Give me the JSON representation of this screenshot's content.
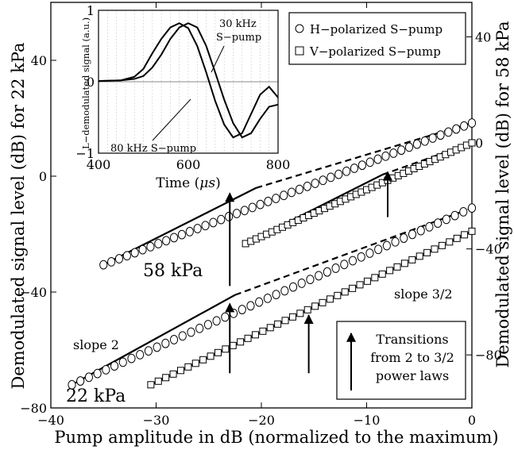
{
  "chart_data": {
    "type": "scatter",
    "xlabel": "Pump amplitude in dB (normalized to the maximum)",
    "ylabel_left": "Demodulated signal level (dB) for 22 kPa",
    "ylabel_right": "Demodulated signal level (dB) for 58 kPa",
    "xlim": [
      -40,
      0
    ],
    "ylim_left": [
      -80,
      60
    ],
    "ylim_right": [
      -100,
      53
    ],
    "xticks": [
      "−40",
      "−30",
      "−20",
      "−10",
      "0"
    ],
    "yticks_left": [
      "−80",
      "−40",
      "0",
      "40"
    ],
    "yticks_right": [
      "−80",
      "−40",
      "0",
      "40"
    ],
    "legend": {
      "position": "top-right",
      "entries": [
        {
          "marker": "circle",
          "label": "H−polarized S−pump"
        },
        {
          "marker": "square",
          "label": "V−polarized S−pump"
        }
      ]
    },
    "series": [
      {
        "name": "H−polarized S−pump",
        "group": "22 kPa",
        "axis": "left",
        "marker": "circle",
        "x": [
          -38,
          0
        ],
        "y": [
          -72,
          -11
        ]
      },
      {
        "name": "V−polarized S−pump",
        "group": "22 kPa",
        "axis": "left",
        "marker": "square",
        "x": [
          -30.5,
          0
        ],
        "y": [
          -72,
          -19
        ]
      },
      {
        "name": "H−polarized S−pump",
        "group": "58 kPa",
        "axis": "right",
        "marker": "circle",
        "x": [
          -35,
          0
        ],
        "y": [
          -46,
          7.5
        ]
      },
      {
        "name": "V−polarized S−pump",
        "group": "58 kPa",
        "axis": "right",
        "marker": "square",
        "x": [
          -21.5,
          0
        ],
        "y": [
          -38,
          0
        ]
      }
    ],
    "slope_lines": [
      {
        "axis": "left",
        "x": [
          -38,
          -22.5
        ],
        "y": [
          -72,
          -41
        ]
      },
      {
        "axis": "left",
        "x": [
          -30.5,
          -15.5
        ],
        "y": [
          -72,
          -46
        ]
      },
      {
        "axis": "right",
        "x": [
          -35,
          -20.5
        ],
        "y": [
          -46,
          -17
        ]
      },
      {
        "axis": "right",
        "x": [
          -21.5,
          -8.5
        ],
        "y": [
          -38,
          -12
        ]
      }
    ],
    "power_law_lines": [
      {
        "axis": "left",
        "x": [
          -22.5,
          0
        ],
        "y": [
          -41,
          -11
        ]
      },
      {
        "axis": "left",
        "x": [
          -15.5,
          0
        ],
        "y": [
          -46,
          -19
        ]
      },
      {
        "axis": "right",
        "x": [
          -20.5,
          0
        ],
        "y": [
          -17,
          7.5
        ]
      },
      {
        "axis": "right",
        "x": [
          -8.5,
          0
        ],
        "y": [
          -12,
          0
        ]
      }
    ],
    "annotations": {
      "group_58": "58 kPa",
      "group_22": "22 kPa",
      "slope2": "slope 2",
      "slope32": "slope 3/2",
      "transitions": [
        "Transitions",
        "from 2 to 3/2",
        "power laws"
      ]
    },
    "transition_arrows": [
      {
        "axis": "left",
        "x": -23,
        "y_tail": -68,
        "y_head": -44
      },
      {
        "axis": "left",
        "x": -15.5,
        "y_tail": -68,
        "y_head": -48
      },
      {
        "axis": "right",
        "x": -23,
        "y_tail": -54,
        "y_head": -19
      },
      {
        "axis": "right",
        "x": -8,
        "y_tail": -28,
        "y_head": -11
      }
    ],
    "inset": {
      "type": "line",
      "xlabel_prefix": "Time (",
      "xlabel_unit": "μs",
      "xlabel_suffix": ")",
      "ylabel": "L−demodulated signal (a.u.)",
      "xlim": [
        400,
        800
      ],
      "ylim": [
        -1,
        1
      ],
      "xticks": [
        "400",
        "600",
        "800"
      ],
      "yticks": [
        "−1",
        "0",
        "1"
      ],
      "series": [
        {
          "label": "30 kHz S−pump",
          "label_lines": [
            "30 kHz",
            "S−pump"
          ],
          "x": [
            400,
            450,
            480,
            500,
            520,
            540,
            560,
            580,
            600,
            620,
            640,
            660,
            680,
            700,
            720,
            740,
            760,
            780,
            800
          ],
          "y": [
            0.01,
            0.02,
            0.07,
            0.18,
            0.4,
            0.6,
            0.76,
            0.82,
            0.75,
            0.5,
            0.13,
            -0.27,
            -0.6,
            -0.78,
            -0.72,
            -0.45,
            -0.18,
            -0.07,
            -0.22
          ]
        },
        {
          "label": "80 kHz S−pump",
          "x": [
            400,
            450,
            480,
            500,
            520,
            540,
            560,
            580,
            600,
            620,
            640,
            660,
            680,
            700,
            720,
            740,
            760,
            780,
            800
          ],
          "y": [
            0.01,
            0.02,
            0.04,
            0.08,
            0.2,
            0.38,
            0.6,
            0.76,
            0.82,
            0.76,
            0.5,
            0.13,
            -0.25,
            -0.58,
            -0.78,
            -0.72,
            -0.52,
            -0.35,
            -0.32
          ]
        }
      ]
    }
  }
}
